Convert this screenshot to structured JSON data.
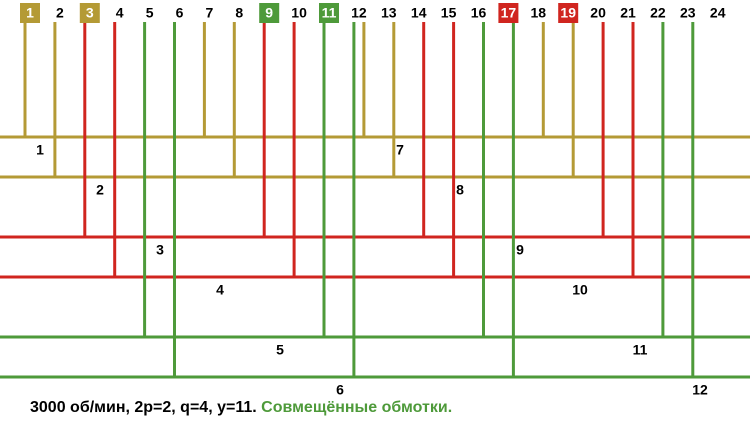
{
  "slots": [
    {
      "label": "1",
      "box": "#b49a35"
    },
    {
      "label": "2"
    },
    {
      "label": "3",
      "box": "#b49a35"
    },
    {
      "label": "4"
    },
    {
      "label": "5"
    },
    {
      "label": "6"
    },
    {
      "label": "7"
    },
    {
      "label": "8"
    },
    {
      "label": "9",
      "box": "#4e9a3a"
    },
    {
      "label": "10"
    },
    {
      "label": "11",
      "box": "#4e9a3a"
    },
    {
      "label": "12"
    },
    {
      "label": "13"
    },
    {
      "label": "14"
    },
    {
      "label": "15"
    },
    {
      "label": "16"
    },
    {
      "label": "17",
      "box": "#d0251f"
    },
    {
      "label": "18"
    },
    {
      "label": "19",
      "box": "#d0251f"
    },
    {
      "label": "20"
    },
    {
      "label": "21"
    },
    {
      "label": "22"
    },
    {
      "label": "23"
    },
    {
      "label": "24"
    }
  ],
  "coils": [
    {
      "label": "1",
      "color": "#b49a35"
    },
    {
      "label": "2",
      "color": "#b49a35"
    },
    {
      "label": "3",
      "color": "#d0251f"
    },
    {
      "label": "4",
      "color": "#d0251f"
    },
    {
      "label": "5",
      "color": "#4e9a3a"
    },
    {
      "label": "6",
      "color": "#4e9a3a"
    },
    {
      "label": "7",
      "color": "#b49a35"
    },
    {
      "label": "8",
      "color": "#b49a35"
    },
    {
      "label": "9",
      "color": "#d0251f"
    },
    {
      "label": "10",
      "color": "#d0251f"
    },
    {
      "label": "11",
      "color": "#4e9a3a"
    },
    {
      "label": "12",
      "color": "#4e9a3a"
    }
  ],
  "caption": {
    "main": "3000 об/мин, 2p=2, q=4, y=11.",
    "highlight": "Совмещённые обмотки.",
    "highlight_color": "#4e9a3a"
  }
}
